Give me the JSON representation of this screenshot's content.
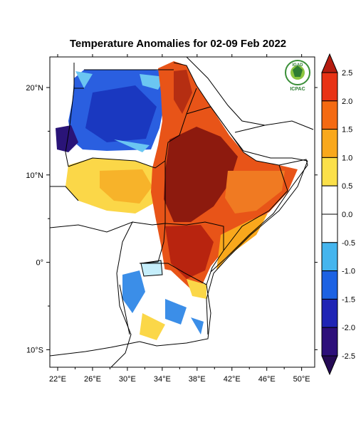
{
  "title": "Temperature Anomalies for 02-09 Feb 2022",
  "map": {
    "lon_ticks": [
      {
        "value": 22,
        "label": "22°E"
      },
      {
        "value": 26,
        "label": "26°E"
      },
      {
        "value": 30,
        "label": "30°E"
      },
      {
        "value": 34,
        "label": "34°E"
      },
      {
        "value": 38,
        "label": "38°E"
      },
      {
        "value": 42,
        "label": "42°E"
      },
      {
        "value": 46,
        "label": "46°E"
      },
      {
        "value": 50,
        "label": "50°E"
      }
    ],
    "lat_ticks": [
      {
        "value": 20,
        "label": "20°N"
      },
      {
        "value": 10,
        "label": "10°N"
      },
      {
        "value": 0,
        "label": "0°"
      },
      {
        "value": -10,
        "label": "10°S"
      }
    ]
  },
  "logo": {
    "org_top": "IGAD",
    "org_bottom": "ICPAC"
  },
  "colorbar": {
    "labels": [
      "2.5",
      "2.0",
      "1.5",
      "1.0",
      "0.5",
      "0.0",
      "-0.5",
      "-1.0",
      "-1.5",
      "-2.0",
      "-2.5"
    ],
    "colors": [
      "#b51c10",
      "#e83215",
      "#f46a12",
      "#f9a81c",
      "#fbe04a",
      "#ffffff",
      "#ffffff",
      "#45b5ee",
      "#1c62e3",
      "#1f24b5",
      "#2d0f7a",
      "#250a55"
    ]
  }
}
